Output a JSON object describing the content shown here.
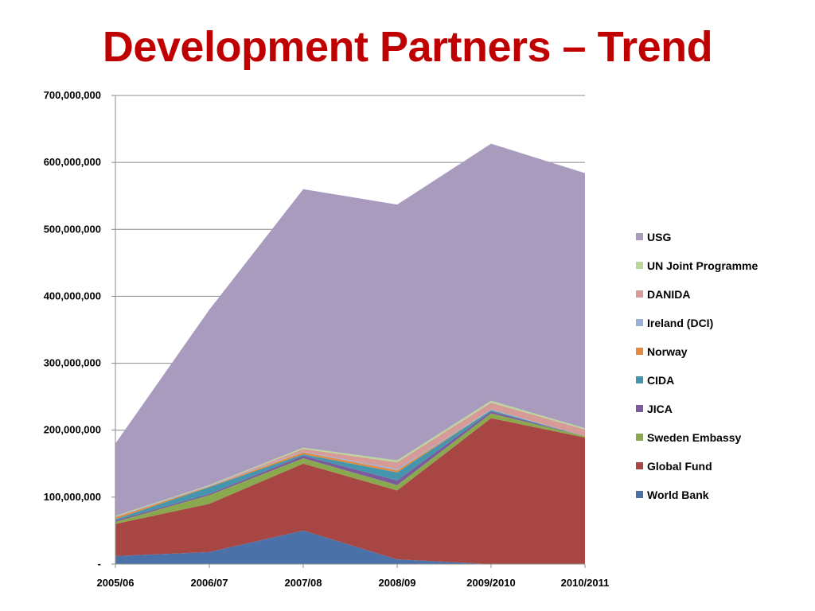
{
  "slide": {
    "title": "Development Partners – Trend"
  },
  "chart_data": {
    "type": "area",
    "stacked": true,
    "categories": [
      "2005/06",
      "2006/07",
      "2007/08",
      "2008/09",
      "2009/2010",
      "2010/2011"
    ],
    "ylim": [
      0,
      700000000
    ],
    "ytick_values": [
      0,
      100000000,
      200000000,
      300000000,
      400000000,
      500000000,
      600000000,
      700000000
    ],
    "ytick_labels": [
      "-",
      "100,000,000",
      "200,000,000",
      "300,000,000",
      "400,000,000",
      "500,000,000",
      "600,000,000",
      "700,000,000"
    ],
    "grid": true,
    "legend_position": "right",
    "series": [
      {
        "name": "World Bank",
        "color": "#4a72a8",
        "values": [
          12000000,
          18000000,
          50000000,
          7000000,
          0,
          0
        ]
      },
      {
        "name": "Global Fund",
        "color": "#a84644",
        "values": [
          48000000,
          72000000,
          100000000,
          103000000,
          218000000,
          189000000
        ]
      },
      {
        "name": "Sweden Embassy",
        "color": "#8aa94e",
        "values": [
          3000000,
          13000000,
          8000000,
          8000000,
          7000000,
          2000000
        ]
      },
      {
        "name": "JICA",
        "color": "#7b5a9e",
        "values": [
          2000000,
          2000000,
          4000000,
          7000000,
          3000000,
          0
        ]
      },
      {
        "name": "CIDA",
        "color": "#4596ac",
        "values": [
          2000000,
          10000000,
          2000000,
          12000000,
          2000000,
          0
        ]
      },
      {
        "name": "Norway",
        "color": "#e38a3e",
        "values": [
          3000000,
          1000000,
          3000000,
          3000000,
          0,
          0
        ]
      },
      {
        "name": "Ireland (DCI)",
        "color": "#9bb1d4",
        "values": [
          1000000,
          1000000,
          1000000,
          2000000,
          1000000,
          0
        ]
      },
      {
        "name": "DANIDA",
        "color": "#d69a99",
        "values": [
          0,
          0,
          4000000,
          10000000,
          10000000,
          10000000
        ]
      },
      {
        "name": "UN Joint Programme",
        "color": "#b9d79a",
        "values": [
          1000000,
          1000000,
          2000000,
          3000000,
          3000000,
          2000000
        ]
      },
      {
        "name": "USG",
        "color": "#a99bbd",
        "values": [
          108000000,
          262000000,
          386000000,
          382000000,
          384000000,
          381000000
        ]
      }
    ]
  }
}
